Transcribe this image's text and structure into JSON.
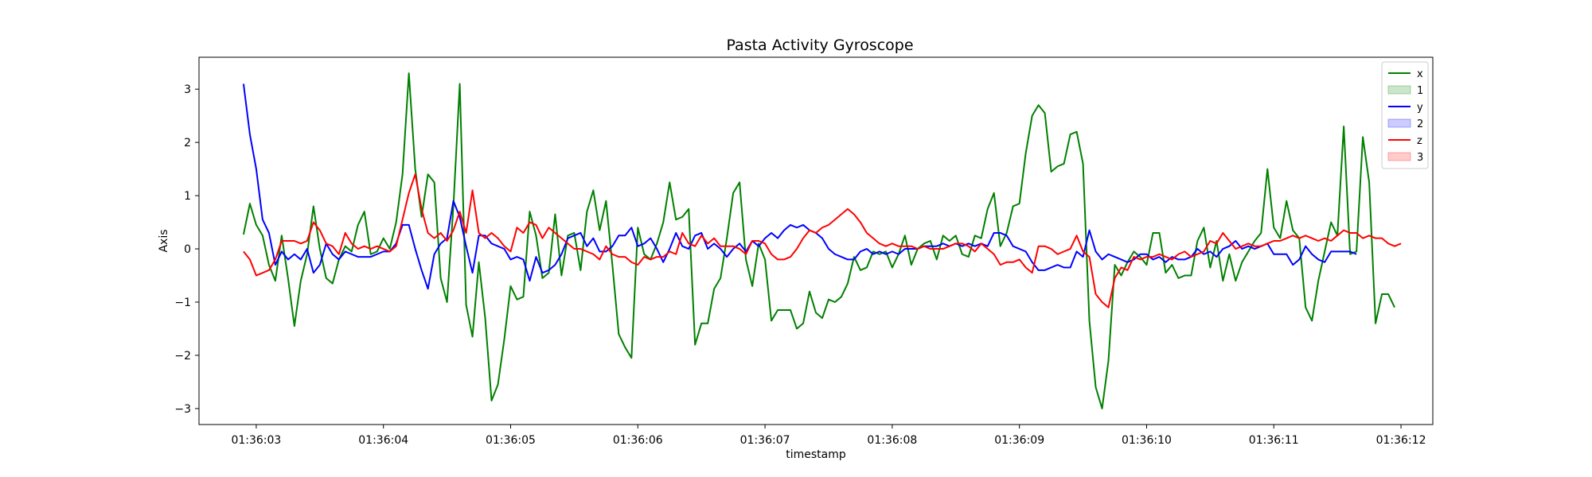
{
  "chart_data": {
    "type": "line",
    "title": "Pasta Activity Gyroscope",
    "xlabel": "timestamp",
    "ylabel": "Axis",
    "xlim": [
      "01:36:02.55",
      "01:36:12.25"
    ],
    "ylim": [
      -3.3,
      3.6
    ],
    "x_ticks": [
      "01:36:03",
      "01:36:04",
      "01:36:05",
      "01:36:06",
      "01:36:07",
      "01:36:08",
      "01:36:09",
      "01:36:10",
      "01:36:11",
      "01:36:12"
    ],
    "y_ticks": [
      -3,
      -2,
      -1,
      0,
      1,
      2,
      3
    ],
    "grid": false,
    "legend_position": "top-right",
    "legend": [
      {
        "label": "x",
        "kind": "line",
        "color": "#008000"
      },
      {
        "label": "1",
        "kind": "patch",
        "color": "#008000"
      },
      {
        "label": "y",
        "kind": "line",
        "color": "#0000ff"
      },
      {
        "label": "2",
        "kind": "patch",
        "color": "#0000ff"
      },
      {
        "label": "z",
        "kind": "line",
        "color": "#ff0000"
      },
      {
        "label": "3",
        "kind": "patch",
        "color": "#ff0000"
      }
    ],
    "x_start": "01:36:02.90",
    "x_step_seconds": 0.05,
    "series": [
      {
        "name": "x",
        "color": "#008000",
        "values": [
          0.27,
          0.85,
          0.45,
          0.25,
          -0.3,
          -0.6,
          0.25,
          -0.55,
          -1.45,
          -0.6,
          -0.1,
          0.8,
          0.0,
          -0.55,
          -0.65,
          -0.2,
          0.05,
          -0.05,
          0.45,
          0.7,
          -0.1,
          -0.05,
          0.2,
          0.0,
          0.5,
          1.4,
          3.3,
          1.5,
          0.6,
          1.4,
          1.25,
          -0.55,
          -1.0,
          0.8,
          3.1,
          -1.05,
          -1.65,
          -0.25,
          -1.3,
          -2.85,
          -2.55,
          -1.7,
          -0.7,
          -0.95,
          -0.9,
          0.7,
          0.25,
          -0.55,
          -0.45,
          0.65,
          -0.5,
          0.25,
          0.3,
          -0.4,
          0.7,
          1.1,
          0.35,
          0.9,
          -0.3,
          -1.6,
          -1.85,
          -2.05,
          0.4,
          -0.1,
          -0.2,
          0.1,
          0.5,
          1.25,
          0.55,
          0.6,
          0.75,
          -1.8,
          -1.4,
          -1.4,
          -0.75,
          -0.55,
          0.2,
          1.05,
          1.25,
          -0.2,
          -0.7,
          0.1,
          -0.2,
          -1.35,
          -1.15,
          -1.15,
          -1.15,
          -1.5,
          -1.4,
          -0.8,
          -1.2,
          -1.3,
          -0.95,
          -1.0,
          -0.9,
          -0.65,
          -0.15,
          -0.4,
          -0.35,
          -0.05,
          -0.1,
          -0.05,
          -0.35,
          -0.1,
          0.25,
          -0.3,
          0.0,
          0.1,
          0.15,
          -0.2,
          0.25,
          0.15,
          0.25,
          -0.1,
          -0.15,
          0.25,
          0.2,
          0.75,
          1.05,
          0.05,
          0.3,
          0.8,
          0.85,
          1.8,
          2.5,
          2.7,
          2.55,
          1.45,
          1.55,
          1.6,
          2.15,
          2.2,
          1.6,
          -1.35,
          -2.6,
          -3.0,
          -2.1,
          -0.3,
          -0.5,
          -0.25,
          -0.05,
          -0.15,
          -0.3,
          0.3,
          0.3,
          -0.45,
          -0.3,
          -0.55,
          -0.5,
          -0.5,
          0.15,
          0.4,
          -0.35,
          0.15,
          -0.6,
          -0.1,
          -0.6,
          -0.25,
          -0.05,
          0.15,
          0.3,
          1.5,
          0.4,
          0.2,
          0.9,
          0.35,
          0.2,
          -1.1,
          -1.35,
          -0.6,
          -0.05,
          0.5,
          0.25,
          2.3,
          -0.1,
          -0.05,
          2.1,
          1.25,
          -1.4,
          -0.85,
          -0.85,
          -1.1
        ]
      },
      {
        "name": "y",
        "color": "#0000ff",
        "values": [
          3.1,
          2.15,
          1.5,
          0.55,
          0.3,
          -0.3,
          -0.05,
          -0.2,
          -0.1,
          -0.2,
          0.0,
          -0.45,
          -0.3,
          0.1,
          -0.1,
          -0.2,
          -0.05,
          -0.1,
          -0.15,
          -0.15,
          -0.15,
          -0.1,
          -0.05,
          -0.05,
          0.1,
          0.45,
          0.45,
          0.0,
          -0.4,
          -0.75,
          -0.1,
          0.1,
          0.2,
          0.9,
          0.6,
          0.05,
          -0.45,
          0.25,
          0.25,
          0.1,
          0.05,
          0.0,
          -0.2,
          -0.15,
          -0.2,
          -0.6,
          -0.15,
          -0.45,
          -0.4,
          -0.3,
          -0.1,
          0.2,
          0.25,
          0.3,
          0.05,
          0.2,
          -0.05,
          -0.05,
          0.05,
          0.25,
          0.25,
          0.4,
          0.05,
          0.1,
          0.2,
          0.0,
          -0.25,
          0.0,
          0.3,
          0.05,
          0.0,
          0.25,
          0.3,
          0.0,
          0.1,
          0.0,
          -0.15,
          0.0,
          0.1,
          -0.05,
          0.15,
          0.05,
          0.2,
          0.3,
          0.2,
          0.35,
          0.45,
          0.4,
          0.45,
          0.35,
          0.3,
          0.2,
          0.0,
          -0.1,
          -0.15,
          -0.2,
          -0.2,
          -0.05,
          0.0,
          -0.1,
          -0.05,
          -0.1,
          -0.05,
          -0.1,
          0.0,
          0.0,
          0.0,
          0.05,
          0.05,
          0.05,
          0.1,
          0.05,
          0.1,
          0.05,
          0.1,
          0.05,
          0.1,
          0.05,
          0.3,
          0.3,
          0.25,
          0.05,
          0.0,
          -0.05,
          -0.25,
          -0.4,
          -0.4,
          -0.35,
          -0.3,
          -0.35,
          -0.35,
          -0.05,
          -0.15,
          0.35,
          -0.05,
          -0.2,
          -0.1,
          -0.15,
          -0.2,
          -0.25,
          -0.2,
          -0.1,
          -0.1,
          -0.2,
          -0.15,
          -0.25,
          -0.15,
          -0.2,
          -0.2,
          -0.15,
          0.0,
          -0.1,
          -0.05,
          -0.15,
          0.0,
          0.05,
          0.15,
          0.0,
          0.05,
          0.0,
          0.05,
          0.1,
          -0.1,
          -0.1,
          -0.1,
          -0.3,
          -0.2,
          0.05,
          -0.1,
          -0.2,
          -0.25,
          -0.05,
          -0.05,
          -0.05,
          -0.05,
          -0.1
        ]
      },
      {
        "name": "z",
        "color": "#ff0000",
        "values": [
          -0.05,
          -0.2,
          -0.5,
          -0.45,
          -0.4,
          -0.2,
          0.15,
          0.15,
          0.15,
          0.1,
          0.15,
          0.5,
          0.35,
          0.1,
          0.05,
          -0.1,
          0.3,
          0.1,
          0.0,
          0.05,
          0.0,
          0.05,
          0.0,
          -0.05,
          0.05,
          0.55,
          1.05,
          1.4,
          0.75,
          0.3,
          0.2,
          0.3,
          0.15,
          0.35,
          0.7,
          0.3,
          1.1,
          0.3,
          0.2,
          0.3,
          0.2,
          0.05,
          -0.05,
          0.4,
          0.3,
          0.5,
          0.45,
          0.2,
          0.4,
          0.3,
          0.2,
          0.1,
          0.0,
          0.0,
          -0.05,
          -0.1,
          -0.2,
          0.05,
          -0.1,
          -0.15,
          -0.15,
          -0.25,
          -0.3,
          -0.15,
          -0.2,
          -0.15,
          -0.15,
          -0.05,
          -0.1,
          0.3,
          0.1,
          0.05,
          0.25,
          0.1,
          0.2,
          0.05,
          0.05,
          0.05,
          0.0,
          -0.1,
          0.15,
          0.15,
          0.1,
          -0.1,
          -0.2,
          -0.2,
          -0.15,
          0.0,
          0.2,
          0.35,
          0.3,
          0.4,
          0.45,
          0.55,
          0.65,
          0.75,
          0.65,
          0.5,
          0.3,
          0.2,
          0.1,
          0.05,
          0.1,
          0.05,
          0.05,
          0.05,
          0.0,
          0.05,
          0.0,
          0.0,
          0.0,
          0.05,
          0.1,
          0.1,
          0.05,
          -0.05,
          0.1,
          0.0,
          -0.1,
          -0.3,
          -0.25,
          -0.25,
          -0.2,
          -0.35,
          -0.45,
          0.05,
          0.05,
          0.0,
          -0.1,
          -0.05,
          0.0,
          0.25,
          -0.05,
          -0.15,
          -0.85,
          -1.0,
          -1.1,
          -0.55,
          -0.35,
          -0.4,
          -0.15,
          -0.2,
          -0.15,
          -0.15,
          -0.1,
          -0.15,
          -0.2,
          -0.1,
          -0.05,
          -0.15,
          -0.1,
          -0.05,
          0.15,
          0.1,
          0.3,
          0.15,
          0.0,
          0.05,
          0.1,
          0.05,
          0.05,
          0.1,
          0.15,
          0.15,
          0.2,
          0.25,
          0.2,
          0.25,
          0.2,
          0.15,
          0.2,
          0.15,
          0.25,
          0.35,
          0.3,
          0.3,
          0.2,
          0.25,
          0.2,
          0.2,
          0.1,
          0.05,
          0.1
        ]
      }
    ]
  }
}
